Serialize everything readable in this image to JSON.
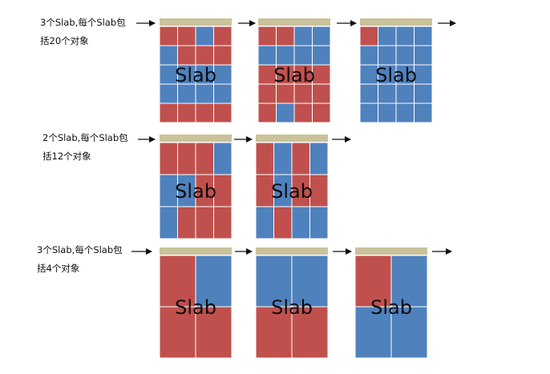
{
  "colors": {
    "allocated": "#c0504d",
    "free": "#4f81bd",
    "header": "#c9c29a",
    "arrow": "#111111",
    "grid_line": "#ffffff"
  },
  "slab_label": "Slab",
  "rows": [
    {
      "label_line1": "3个Slab,每个Slab包",
      "label_line2": "括20个对象",
      "cols": 4,
      "slabs": [
        {
          "grid": [
            [
              "allocated",
              "allocated",
              "free",
              "allocated"
            ],
            [
              "free",
              "allocated",
              "allocated",
              "allocated"
            ],
            [
              "free",
              "free",
              "free",
              "free"
            ],
            [
              "free",
              "free",
              "free",
              "free"
            ],
            [
              "allocated",
              "allocated",
              "allocated",
              "allocated"
            ]
          ]
        },
        {
          "grid": [
            [
              "allocated",
              "allocated",
              "free",
              "free"
            ],
            [
              "free",
              "free",
              "free",
              "free"
            ],
            [
              "allocated",
              "allocated",
              "allocated",
              "allocated"
            ],
            [
              "allocated",
              "allocated",
              "allocated",
              "allocated"
            ],
            [
              "allocated",
              "free",
              "allocated",
              "allocated"
            ]
          ]
        },
        {
          "grid": [
            [
              "allocated",
              "free",
              "free",
              "free"
            ],
            [
              "free",
              "free",
              "free",
              "free"
            ],
            [
              "free",
              "free",
              "free",
              "free"
            ],
            [
              "free",
              "free",
              "free",
              "free"
            ],
            [
              "free",
              "free",
              "free",
              "free"
            ]
          ]
        }
      ]
    },
    {
      "label_line1": "2个Slab,每个Slab包",
      "label_line2": "括12个对象",
      "cols": 4,
      "slabs": [
        {
          "grid": [
            [
              "allocated",
              "allocated",
              "allocated",
              "free"
            ],
            [
              "free",
              "free",
              "allocated",
              "allocated"
            ],
            [
              "free",
              "allocated",
              "allocated",
              "allocated"
            ]
          ]
        },
        {
          "grid": [
            [
              "allocated",
              "free",
              "allocated",
              "free"
            ],
            [
              "allocated",
              "free",
              "allocated",
              "allocated"
            ],
            [
              "free",
              "allocated",
              "free",
              "free"
            ]
          ]
        }
      ]
    },
    {
      "label_line1": "3个Slab,每个Slab包",
      "label_line2": "括4个对象",
      "cols": 2,
      "slabs": [
        {
          "grid": [
            [
              "allocated",
              "free"
            ],
            [
              "allocated",
              "allocated"
            ]
          ]
        },
        {
          "grid": [
            [
              "free",
              "free"
            ],
            [
              "allocated",
              "allocated"
            ]
          ]
        },
        {
          "grid": [
            [
              "allocated",
              "free"
            ],
            [
              "free",
              "free"
            ]
          ]
        }
      ]
    }
  ]
}
